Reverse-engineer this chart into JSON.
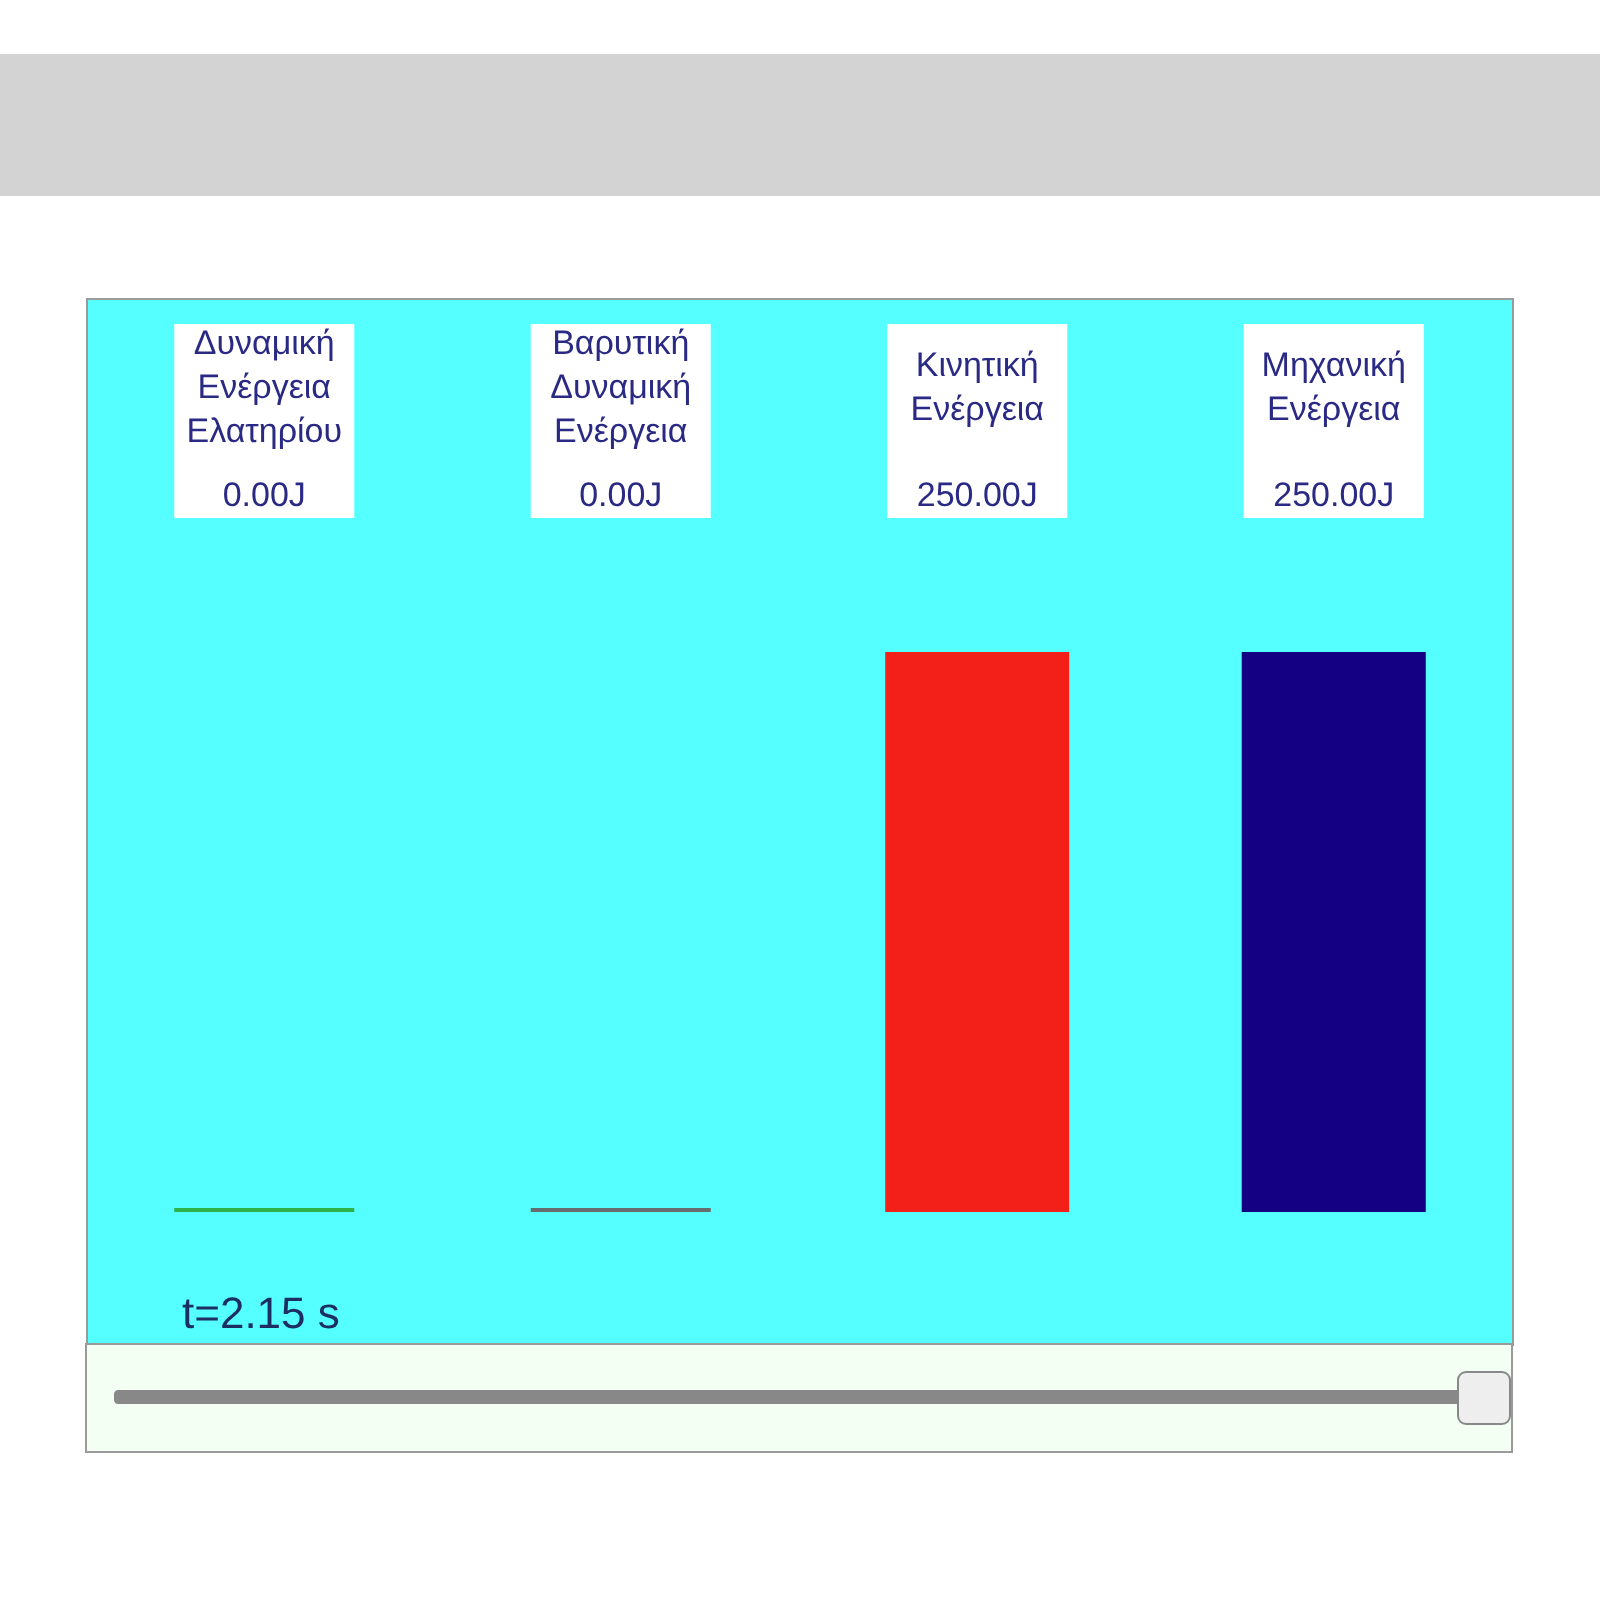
{
  "chart_data": {
    "type": "bar",
    "categories": [
      "Δυναμική Ενέργεια Ελατηρίου",
      "Βαρυτική Δυναμική Ενέργεια",
      "Κινητική Ενέργεια",
      "Μηχανική Ενέργεια"
    ],
    "values": [
      0,
      0,
      250,
      250
    ],
    "colors": [
      "#2db34a",
      "#666e70",
      "#f22018",
      "#140082"
    ],
    "value_labels": [
      "0.00J",
      "0.00J",
      "250.00J",
      "250.00J"
    ],
    "annotations": [
      "t=2.15 s"
    ]
  }
}
